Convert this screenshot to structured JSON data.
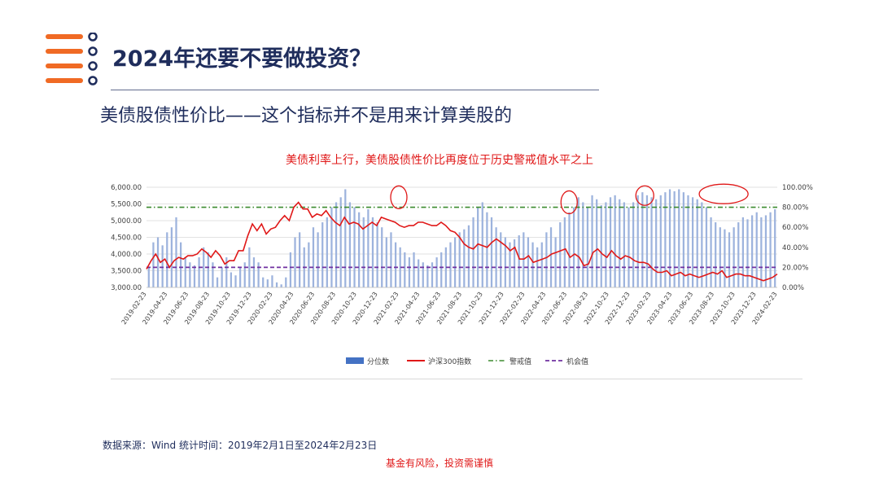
{
  "header": {
    "title": "2024年还要不要做投资？",
    "subtitle": "美债股债性价比——这个指标并不是用来计算美股的"
  },
  "colors": {
    "accent_orange": "#f06a24",
    "navy": "#1f2d5c",
    "bar_blue": "#4472c4",
    "line_red": "#e01818",
    "warn_green": "#3b8a2e",
    "chance_purple": "#7030a0"
  },
  "footer": {
    "source": "数据来源：Wind 统计时间：2019年2月1日至2024年2月23日",
    "risk": "基金有风险，投资需谨慎"
  },
  "chart_data": {
    "type": "bar+line",
    "title": "美债利率上行，美债股债性价比再度位于历史警戒值水平之上",
    "x_ticks": [
      "2019-02-23",
      "2019-04-23",
      "2019-06-23",
      "2019-08-23",
      "2019-10-23",
      "2019-12-23",
      "2020-02-23",
      "2020-04-23",
      "2020-06-23",
      "2020-08-23",
      "2020-10-23",
      "2020-12-23",
      "2021-02-23",
      "2021-04-23",
      "2021-06-23",
      "2021-08-23",
      "2021-10-23",
      "2021-12-23",
      "2022-02-23",
      "2022-04-23",
      "2022-06-23",
      "2022-08-23",
      "2022-10-23",
      "2022-12-23",
      "2023-02-23",
      "2023-04-23",
      "2023-06-23",
      "2023-08-23",
      "2023-10-23",
      "2023-12-23",
      "2024-02-23"
    ],
    "y_left": {
      "ticks": [
        "3,000.00",
        "3,500.00",
        "4,000.00",
        "4,500.00",
        "5,000.00",
        "5,500.00",
        "6,000.00"
      ],
      "ylim": [
        3000,
        6000
      ]
    },
    "y_right": {
      "ticks": [
        "0.00%",
        "20.00%",
        "40.00%",
        "60.00%",
        "80.00%",
        "100.00%"
      ],
      "ylim": [
        0,
        100
      ]
    },
    "legend": [
      "分位数",
      "沪深300指数",
      "警戒值",
      "机会值"
    ],
    "warning_value": 80,
    "opportunity_value": 20,
    "csi300": [
      3550,
      3800,
      4000,
      3750,
      3850,
      3600,
      3800,
      3900,
      3850,
      3950,
      3950,
      4000,
      4150,
      4050,
      3900,
      4100,
      3950,
      3700,
      3800,
      3800,
      4100,
      4100,
      4550,
      4900,
      4700,
      4900,
      4600,
      4750,
      4800,
      5000,
      5150,
      5000,
      5400,
      5550,
      5350,
      5350,
      5100,
      5200,
      5150,
      5300,
      5100,
      4950,
      4850,
      5100,
      4900,
      4950,
      4900,
      4750,
      4850,
      4950,
      4850,
      5100,
      5050,
      5000,
      4950,
      4850,
      4800,
      4850,
      4850,
      4950,
      4950,
      4900,
      4850,
      4850,
      4950,
      4850,
      4700,
      4650,
      4500,
      4300,
      4200,
      4150,
      4300,
      4250,
      4200,
      4350,
      4450,
      4350,
      4250,
      4100,
      4200,
      3850,
      3850,
      3950,
      3750,
      3800,
      3850,
      3900,
      4000,
      4050,
      4100,
      4150,
      3900,
      4000,
      3900,
      3650,
      3700,
      4050,
      4150,
      4000,
      3900,
      4100,
      3950,
      3850,
      3950,
      3900,
      3800,
      3750,
      3750,
      3700,
      3550,
      3450,
      3450,
      3500,
      3350,
      3400,
      3450,
      3350,
      3400,
      3350,
      3300,
      3350,
      3400,
      3450,
      3400,
      3500,
      3300,
      3350,
      3400,
      3400,
      3350,
      3350,
      3300,
      3250,
      3200,
      3250,
      3300,
      3400
    ],
    "percentile": [
      20,
      45,
      50,
      42,
      55,
      60,
      70,
      45,
      30,
      25,
      22,
      30,
      40,
      35,
      25,
      10,
      20,
      30,
      15,
      12,
      20,
      25,
      40,
      30,
      25,
      10,
      8,
      12,
      5,
      3,
      10,
      35,
      50,
      55,
      40,
      45,
      60,
      55,
      65,
      70,
      80,
      85,
      90,
      98,
      85,
      80,
      75,
      70,
      78,
      70,
      65,
      60,
      50,
      55,
      45,
      40,
      35,
      30,
      35,
      28,
      25,
      22,
      25,
      30,
      35,
      40,
      45,
      50,
      55,
      58,
      62,
      70,
      80,
      85,
      75,
      70,
      60,
      55,
      50,
      45,
      48,
      52,
      55,
      50,
      45,
      40,
      45,
      55,
      60,
      50,
      65,
      70,
      75,
      80,
      90,
      85,
      80,
      92,
      88,
      82,
      85,
      90,
      92,
      88,
      85,
      80,
      85,
      92,
      95,
      92,
      90,
      88,
      92,
      95,
      98,
      96,
      98,
      95,
      92,
      90,
      88,
      85,
      80,
      70,
      65,
      60,
      58,
      55,
      60,
      65,
      70,
      68,
      72,
      75,
      70,
      72,
      75,
      78
    ]
  }
}
